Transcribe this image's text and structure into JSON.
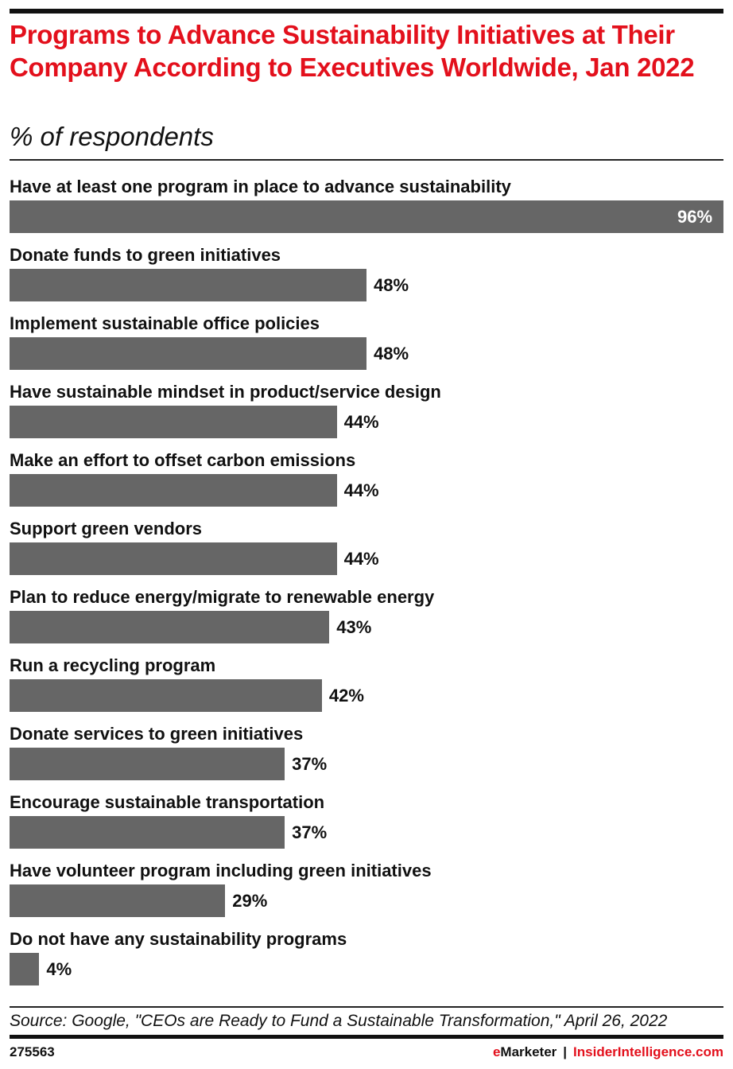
{
  "colors": {
    "title": "#e3101c",
    "bar": "#666666",
    "text": "#111111"
  },
  "title": "Programs to Advance Sustainability Initiatives at Their Company According to Executives Worldwide, Jan 2022",
  "subtitle": "% of respondents",
  "chart_data": {
    "type": "bar",
    "orientation": "horizontal",
    "title": "Programs to Advance Sustainability Initiatives at Their Company According to Executives Worldwide, Jan 2022",
    "subtitle": "% of respondents",
    "xlim": [
      0,
      96
    ],
    "grid": false,
    "categories": [
      "Have at least one program in place to advance sustainability",
      "Donate funds to green initiatives",
      "Implement sustainable office policies",
      "Have sustainable mindset in product/service design",
      "Make an effort to offset carbon emissions",
      "Support green vendors",
      "Plan to reduce energy/migrate to renewable energy",
      "Run a recycling program",
      "Donate services to green initiatives",
      "Encourage sustainable transportation",
      "Have volunteer program including green initiatives",
      "Do not have any sustainability programs"
    ],
    "values": [
      96,
      48,
      48,
      44,
      44,
      44,
      43,
      42,
      37,
      37,
      29,
      4
    ],
    "labels": [
      "96%",
      "48%",
      "48%",
      "44%",
      "44%",
      "44%",
      "43%",
      "42%",
      "37%",
      "37%",
      "29%",
      "4%"
    ]
  },
  "source": "Source: Google, \"CEOs are Ready to Fund a Sustainable Transformation,\" April 26, 2022",
  "footer": {
    "id": "275563",
    "brand1_e": "e",
    "brand1_rest": "Marketer",
    "separator": "|",
    "brand2": "InsiderIntelligence.com"
  }
}
